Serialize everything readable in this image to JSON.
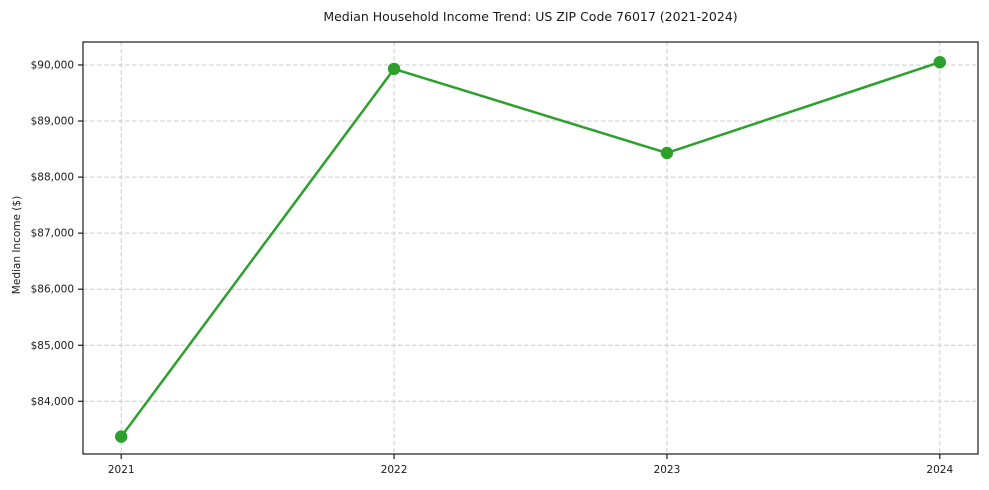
{
  "chart_data": {
    "type": "line",
    "title": "Median Household Income Trend: US ZIP Code 76017 (2021-2024)",
    "xlabel": "",
    "ylabel": "Median Income ($)",
    "x": [
      2021,
      2022,
      2023,
      2024
    ],
    "x_tick_labels": [
      "2021",
      "2022",
      "2023",
      "2024"
    ],
    "values": [
      83370,
      89930,
      88430,
      90050
    ],
    "y_ticks": [
      84000,
      85000,
      86000,
      87000,
      88000,
      89000,
      90000
    ],
    "y_tick_labels": [
      "$84,000",
      "$85,000",
      "$86,000",
      "$87,000",
      "$88,000",
      "$89,000",
      "$90,000"
    ],
    "ylim": [
      83060,
      90410
    ],
    "xlim": [
      2020.86,
      2024.14
    ],
    "grid": true,
    "legend": false,
    "marker": "circle",
    "colors": {
      "line": "#2ca02c",
      "marker": "#2ca02c",
      "grid": "#cccccc",
      "axis": "#1a1a1a",
      "text": "#1a1a1a",
      "background": "#ffffff"
    }
  }
}
